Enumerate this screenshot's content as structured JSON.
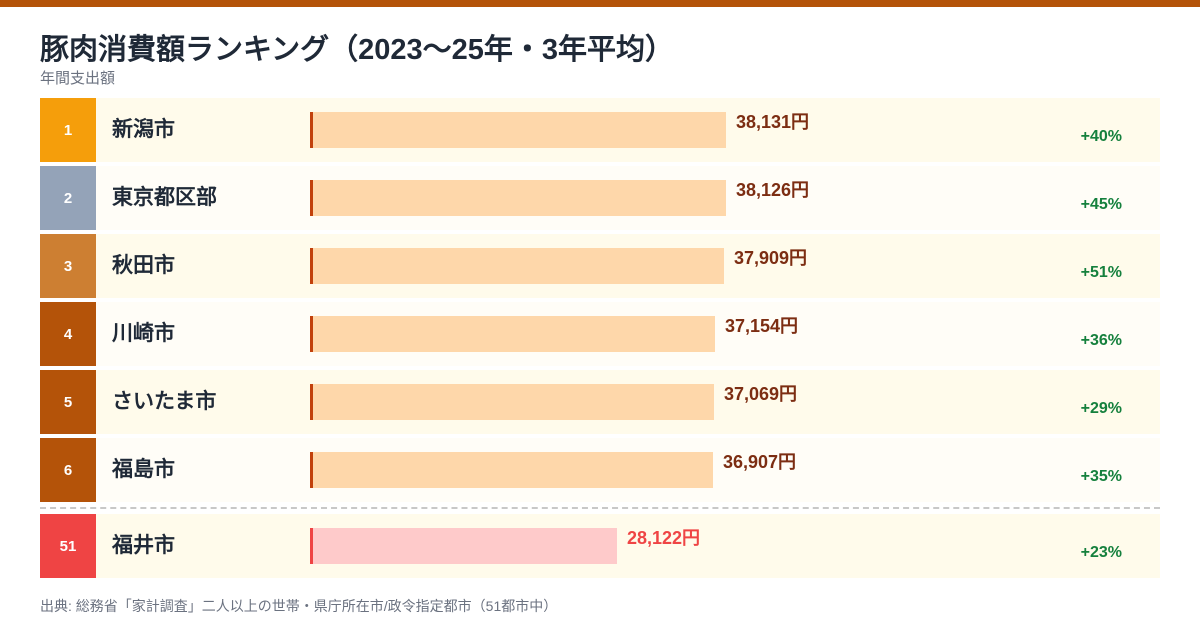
{
  "title": "豚肉消費額ランキング（2023〜25年・3年平均）",
  "subtitle": "年間支出額",
  "source": "出典: 総務省「家計調査」二人以上の世帯・県庁所在市/政令指定都市（51都市中）",
  "colors": {
    "top_bar": "#b45309",
    "rank_gold": "#f59e0b",
    "rank_silver": "#94a3b8",
    "rank_bronze": "#cd7f32",
    "rank_other": "#b45309",
    "rank_highlight": "#ef4444",
    "bar": "#fed7aa",
    "bar_accent": "#c2410c",
    "value_text": "#7c2d12",
    "bar_highlight": "#fecaca",
    "value_highlight": "#ef4444",
    "change": "#15803d",
    "row_bg_a": "#fffbeb",
    "row_bg_b": "#fffdf7"
  },
  "chart_data": {
    "type": "bar",
    "orientation": "horizontal",
    "unit": "円",
    "categories": [
      "新潟市",
      "東京都区部",
      "秋田市",
      "川崎市",
      "さいたま市",
      "福島市",
      "福井市"
    ],
    "ranks": [
      "1",
      "2",
      "3",
      "4",
      "5",
      "6",
      "51"
    ],
    "values": [
      38131,
      38126,
      37909,
      37154,
      37069,
      36907,
      28122
    ],
    "value_labels": [
      "38,131円",
      "38,126円",
      "37,909円",
      "37,154円",
      "37,069円",
      "36,907円",
      "28,122円"
    ],
    "changes": [
      "+40%",
      "+45%",
      "+51%",
      "+36%",
      "+29%",
      "+35%",
      "+23%"
    ],
    "highlight_index": 6
  }
}
